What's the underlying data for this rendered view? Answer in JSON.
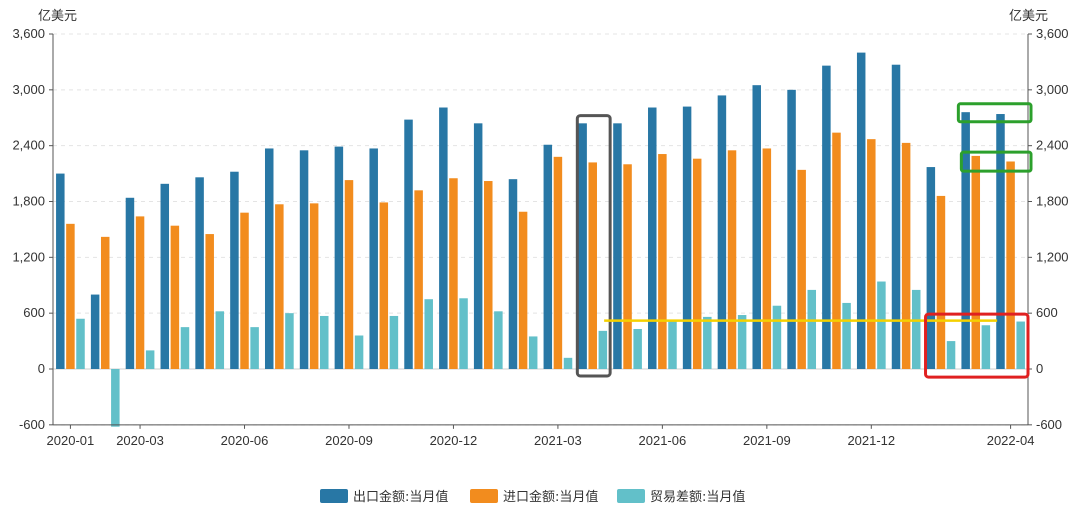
{
  "chart_data": {
    "type": "bar",
    "unit_left": "亿美元",
    "unit_right": "亿美元",
    "ylim": [
      -600,
      3600
    ],
    "yticks": [
      "-600",
      "0",
      "600",
      "1,200",
      "1,800",
      "2,400",
      "3,000",
      "3,600"
    ],
    "ytick_values": [
      -600,
      0,
      600,
      1200,
      1800,
      2400,
      3000,
      3600
    ],
    "x_tick_labels": [
      {
        "index": 0,
        "label": "2020-01"
      },
      {
        "index": 2,
        "label": "2020-03"
      },
      {
        "index": 5,
        "label": "2020-06"
      },
      {
        "index": 8,
        "label": "2020-09"
      },
      {
        "index": 11,
        "label": "2020-12"
      },
      {
        "index": 14,
        "label": "2021-03"
      },
      {
        "index": 17,
        "label": "2021-06"
      },
      {
        "index": 20,
        "label": "2021-09"
      },
      {
        "index": 23,
        "label": "2021-12"
      },
      {
        "index": 27,
        "label": "2022-04"
      }
    ],
    "categories": [
      "2020-01",
      "2020-02",
      "2020-03",
      "2020-04",
      "2020-05",
      "2020-06",
      "2020-07",
      "2020-08",
      "2020-09",
      "2020-10",
      "2020-11",
      "2020-12",
      "2021-01",
      "2021-02",
      "2021-03",
      "2021-04",
      "2021-05",
      "2021-06",
      "2021-07",
      "2021-08",
      "2021-09",
      "2021-10",
      "2021-11",
      "2021-12",
      "2022-01",
      "2022-02",
      "2022-03",
      "2022-04"
    ],
    "series": [
      {
        "name": "出口金额:当月值",
        "color": "#2877a5",
        "values": [
          2100,
          800,
          1840,
          1990,
          2060,
          2120,
          2370,
          2350,
          2390,
          2370,
          2680,
          2810,
          2640,
          2040,
          2410,
          2640,
          2640,
          2810,
          2820,
          2940,
          3050,
          3000,
          3260,
          3400,
          3270,
          2170,
          2760,
          2740
        ]
      },
      {
        "name": "进口金额:当月值",
        "color": "#f28c1e",
        "values": [
          1560,
          1420,
          1640,
          1540,
          1450,
          1680,
          1770,
          1780,
          2030,
          1790,
          1920,
          2050,
          2020,
          1690,
          2280,
          2220,
          2200,
          2310,
          2260,
          2350,
          2370,
          2140,
          2540,
          2470,
          2430,
          1860,
          2290,
          2230
        ]
      },
      {
        "name": "贸易差额:当月值",
        "color": "#62c0c9",
        "values": [
          540,
          -620,
          200,
          450,
          620,
          450,
          600,
          570,
          360,
          570,
          750,
          760,
          620,
          350,
          120,
          410,
          430,
          520,
          560,
          580,
          680,
          850,
          710,
          940,
          850,
          300,
          470,
          510
        ]
      }
    ],
    "annotations": [
      {
        "shape": "rect",
        "color": "#555555",
        "note": "2021-04"
      },
      {
        "shape": "hline",
        "color": "#f5d000",
        "note": "贸易差额 level line"
      },
      {
        "shape": "rect",
        "color": "#2ca02c",
        "note": "2022-04 出口"
      },
      {
        "shape": "rect",
        "color": "#2ca02c",
        "note": "2022-04 进口"
      },
      {
        "shape": "rect",
        "color": "#e02020",
        "note": "2022-02 to 2022-04 贸易差额"
      }
    ],
    "grid": true,
    "legend_position": "bottom-center"
  }
}
